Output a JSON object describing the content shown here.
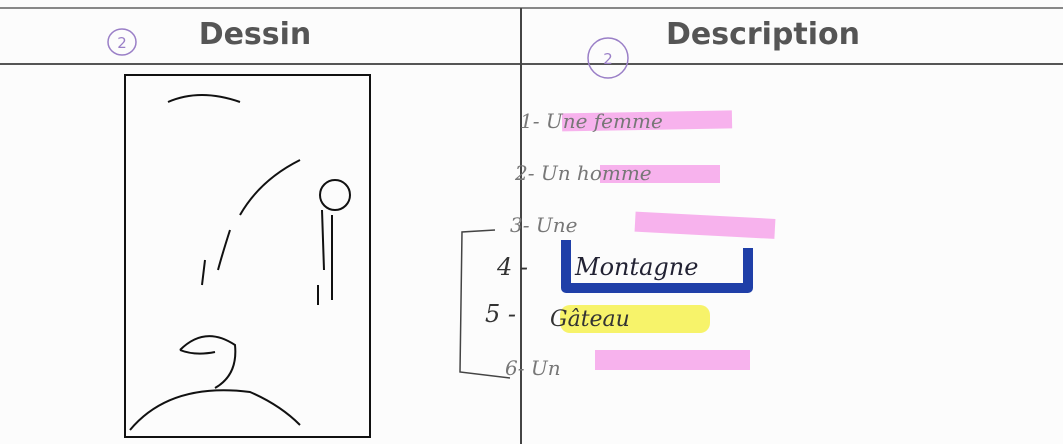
{
  "header": {
    "left": {
      "title": "Dessin",
      "note": "2"
    },
    "right": {
      "title": "Description",
      "note": "2"
    }
  },
  "description": {
    "items": [
      "1- Une femme",
      "2- Un homme",
      "3- Une",
      "4 -",
      "Montagne",
      "5 -",
      "Gâteau",
      "6- Un"
    ]
  }
}
